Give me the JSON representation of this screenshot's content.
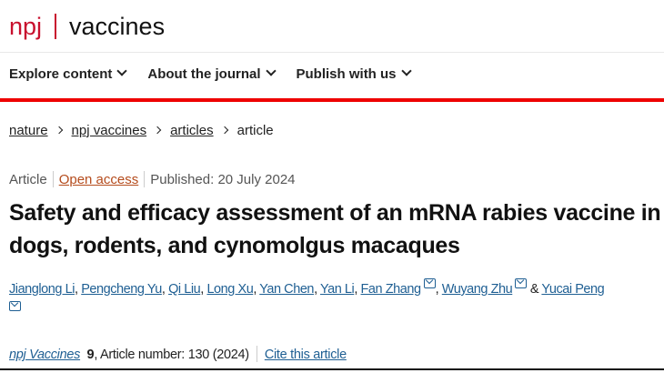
{
  "header": {
    "brand": "npj",
    "journal": "vaccines"
  },
  "nav": [
    {
      "label": "Explore content"
    },
    {
      "label": "About the journal"
    },
    {
      "label": "Publish with us"
    }
  ],
  "breadcrumb": [
    "nature",
    "npj vaccines",
    "articles",
    "article"
  ],
  "meta": {
    "type": "Article",
    "access": "Open access",
    "published": "Published: 20 July 2024"
  },
  "title": "Safety and efficacy assessment of an mRNA rabies vaccine in dogs, rodents, and cynomolgus macaques",
  "authors": [
    "Jianglong Li",
    "Pengcheng Yu",
    "Qi Liu",
    "Long Xu",
    "Yan Chen",
    "Yan Li",
    "Fan Zhang",
    "Wuyang Zhu",
    "Yucai Peng"
  ],
  "authors_sep": {
    "comma": ",",
    "and": "&"
  },
  "citation": {
    "journal": "npj Vaccines",
    "volume": "9",
    "rest": ", Article number: 130 (2024)",
    "cite_label": "Cite this article"
  },
  "colors": {
    "brand_red": "#c8102e",
    "nav_bar": "#ee0000",
    "link": "#1f5f93",
    "open_access": "#b54c1d"
  }
}
